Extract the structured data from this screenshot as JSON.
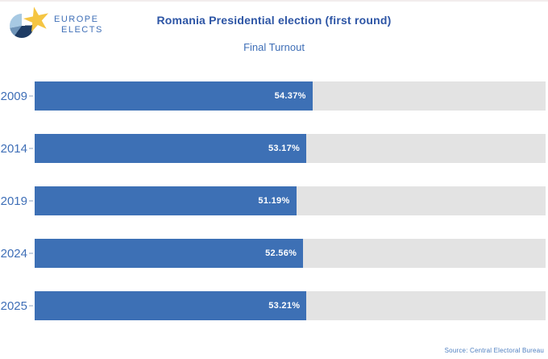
{
  "logo": {
    "line1": "EUROPE",
    "line2": "ELECTS"
  },
  "header": {
    "title": "Romania Presidential election (first round)",
    "subtitle": "Final Turnout"
  },
  "chart_data": {
    "type": "bar",
    "orientation": "horizontal",
    "title": "Romania Presidential election (first round)",
    "subtitle": "Final Turnout",
    "categories": [
      "2009",
      "2014",
      "2019",
      "2024",
      "2025"
    ],
    "values": [
      54.37,
      53.17,
      51.19,
      52.56,
      53.21
    ],
    "value_labels": [
      "54.37%",
      "53.17%",
      "51.19%",
      "52.56%",
      "53.21%"
    ],
    "xlim": [
      0,
      100
    ],
    "grid": false,
    "legend": false,
    "value_label_position": "inside-end"
  },
  "footer": {
    "source": "Source: Central Electoral Bureau"
  },
  "colors": {
    "bar_color": "#3d70b5",
    "track_color": "#e3e3e3",
    "title_color": "#2d55a5",
    "accent": "#3f6fb7",
    "logo_navy": "#1e3c64",
    "logo_steel": "#6f94b8",
    "logo_light": "#a7c9e3",
    "logo_star": "#f5c542"
  }
}
